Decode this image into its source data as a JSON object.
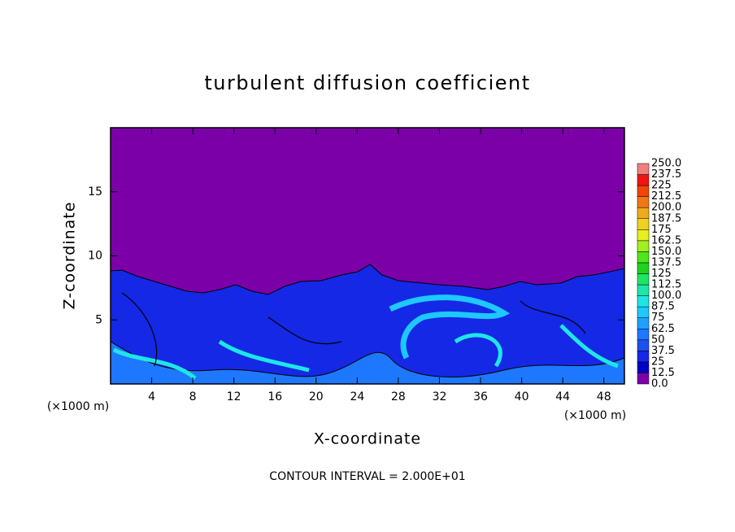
{
  "chart_data": {
    "type": "contour",
    "title": "turbulent diffusion coefficient",
    "x_label": "X-coordinate",
    "y_label": "Z-coordinate",
    "x_unit": "(×1000 m)",
    "footer": "CONTOUR INTERVAL = 2.000E+01",
    "xlim": [
      0,
      50
    ],
    "xticks": [
      4,
      8,
      12,
      16,
      20,
      24,
      28,
      32,
      36,
      40,
      44,
      48
    ],
    "ylim": [
      0,
      20
    ],
    "yticks": [
      5,
      10,
      15
    ],
    "colorbar": {
      "levels": [
        {
          "value": 0,
          "label": "0.0"
        },
        12.5,
        25.0,
        37.5,
        50.0,
        62.5,
        75.0,
        87.5,
        {
          "value": 100,
          "label": "100.0"
        },
        112.5,
        125.0,
        137.5,
        {
          "value": 150,
          "label": "150.0"
        },
        162.5,
        175.0,
        187.5,
        {
          "value": 200,
          "label": "200.0"
        },
        212.5,
        225.0,
        237.5,
        {
          "value": 250,
          "label": "250.0"
        }
      ],
      "colors": [
        "#7b00a8",
        "#0000c8",
        "#1428e6",
        "#1e50f0",
        "#1e78ff",
        "#1ea0ff",
        "#1ec8ff",
        "#1ee6e6",
        "#1ee6aa",
        "#1ee664",
        "#1ed21e",
        "#50e61e",
        "#a0f01e",
        "#e6f01e",
        "#f0d21e",
        "#f0aa1e",
        "#f07814",
        "#f0460a",
        "#f01414",
        "#f08080"
      ]
    }
  }
}
